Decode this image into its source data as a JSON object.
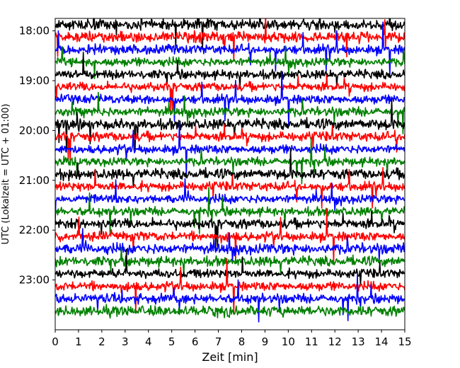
{
  "chart_data": {
    "type": "line",
    "title": "",
    "xlabel": "Zeit  [min]",
    "ylabel": "UTC (Lokalzeit = UTC + 01:00)",
    "xlim": [
      0,
      15
    ],
    "x_ticks": [
      "0",
      "1",
      "2",
      "3",
      "4",
      "5",
      "6",
      "7",
      "8",
      "9",
      "10",
      "11",
      "12",
      "13",
      "14",
      "15"
    ],
    "y_ticks": [
      "18:00",
      "19:00",
      "20:00",
      "21:00",
      "22:00",
      "23:00"
    ],
    "y_start": "17:45",
    "y_end": "24:00",
    "trace_interval_min": 15,
    "trace_start_times": [
      "17:45",
      "18:00",
      "18:15",
      "18:30",
      "18:45",
      "19:00",
      "19:15",
      "19:30",
      "19:45",
      "20:00",
      "20:15",
      "20:30",
      "20:45",
      "21:00",
      "21:15",
      "21:30",
      "21:45",
      "22:00",
      "22:15",
      "22:30",
      "22:45",
      "23:00",
      "23:15",
      "23:30"
    ],
    "color_cycle": [
      "#000000",
      "#ff0000",
      "#0000ff",
      "#008000"
    ],
    "grid": false,
    "legend": "none"
  }
}
